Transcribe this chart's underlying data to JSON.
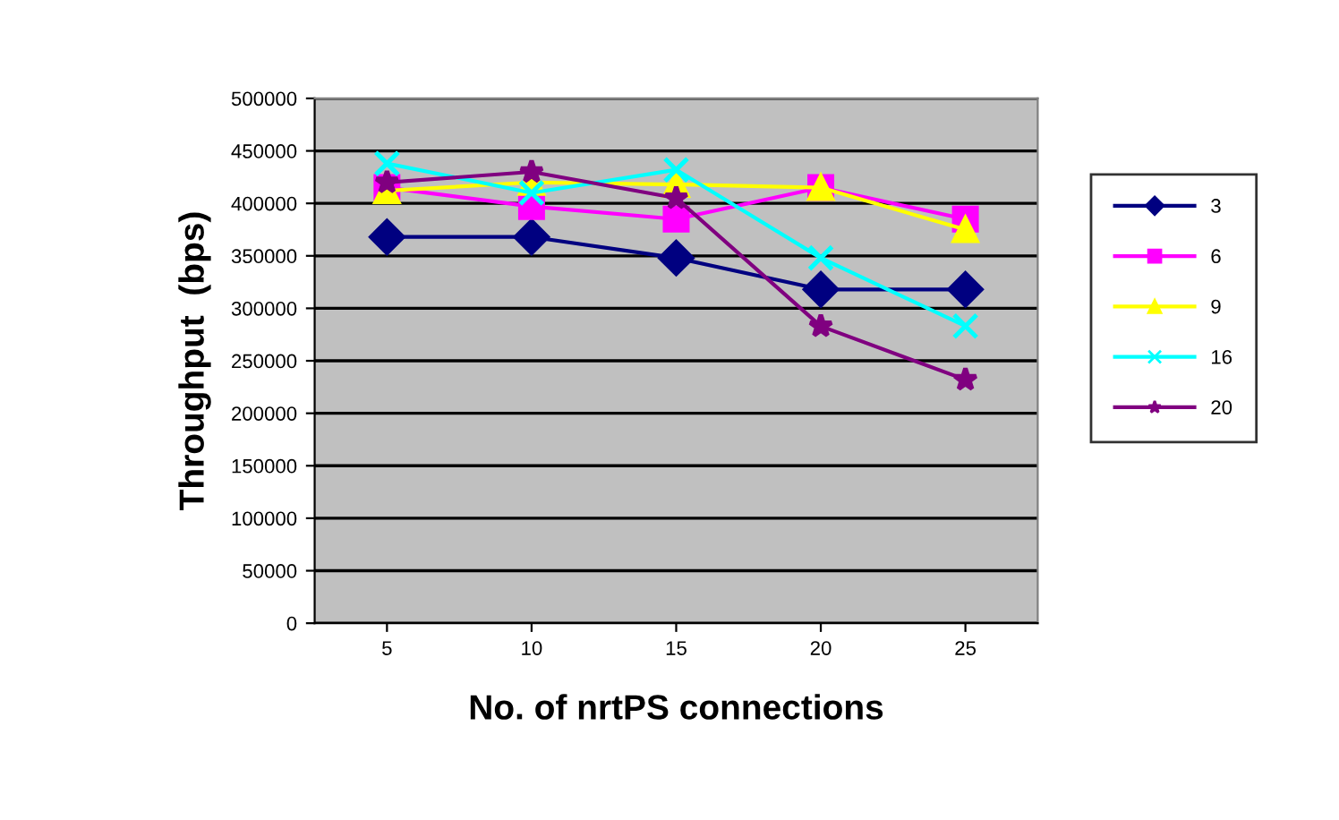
{
  "chart_data": {
    "type": "line",
    "xlabel": "No. of nrtPS connections",
    "ylabel": "Throughput  (bps)",
    "categories": [
      "5",
      "10",
      "15",
      "20",
      "25"
    ],
    "series": [
      {
        "name": "3",
        "color": "#000080",
        "marker": "diamond",
        "values": [
          368000,
          368000,
          348000,
          318000,
          318000
        ]
      },
      {
        "name": "6",
        "color": "#ff00ff",
        "marker": "square",
        "values": [
          415000,
          397000,
          385000,
          415000,
          385000
        ]
      },
      {
        "name": "9",
        "color": "#ffff00",
        "marker": "triangle",
        "values": [
          412000,
          420000,
          418000,
          415000,
          375000
        ]
      },
      {
        "name": "16",
        "color": "#00ffff",
        "marker": "cross",
        "values": [
          438000,
          410000,
          432000,
          348000,
          283000
        ]
      },
      {
        "name": "20",
        "color": "#800080",
        "marker": "star",
        "values": [
          420000,
          430000,
          405000,
          283000,
          232000
        ]
      }
    ],
    "ylim": [
      0,
      500000
    ],
    "yticks": [
      0,
      50000,
      100000,
      150000,
      200000,
      250000,
      300000,
      350000,
      400000,
      450000,
      500000
    ],
    "grid": "y",
    "legend": "right"
  }
}
